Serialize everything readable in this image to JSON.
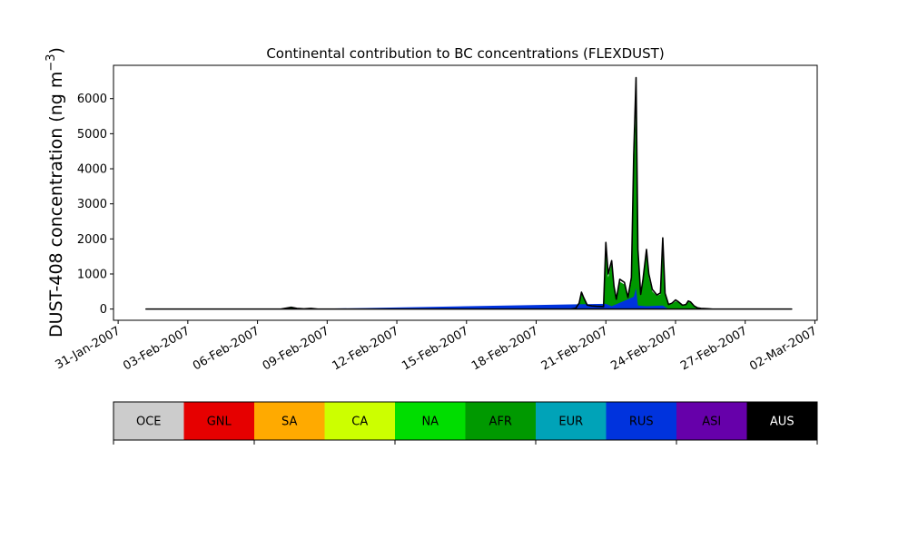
{
  "chart_data": {
    "type": "area",
    "title": "Continental contribution to BC concentrations (FLEXDUST)",
    "ylabel_main": "DUST-408 concentration (ng m",
    "ylabel_sup": "−3",
    "ylabel_close": ")",
    "xlabel": "",
    "ylim": [
      -320,
      6950
    ],
    "xlim_days": [
      -0.2,
      30.1
    ],
    "x_ticks": [
      {
        "label": "31-Jan-2007",
        "day": 0
      },
      {
        "label": "03-Feb-2007",
        "day": 3
      },
      {
        "label": "06-Feb-2007",
        "day": 6
      },
      {
        "label": "09-Feb-2007",
        "day": 9
      },
      {
        "label": "12-Feb-2007",
        "day": 12
      },
      {
        "label": "15-Feb-2007",
        "day": 15
      },
      {
        "label": "18-Feb-2007",
        "day": 18
      },
      {
        "label": "21-Feb-2007",
        "day": 21
      },
      {
        "label": "24-Feb-2007",
        "day": 24
      },
      {
        "label": "27-Feb-2007",
        "day": 27
      },
      {
        "label": "02-Mar-2007",
        "day": 30
      }
    ],
    "y_ticks": [
      0,
      1000,
      2000,
      3000,
      4000,
      5000,
      6000
    ],
    "series": [
      {
        "color": "#009900",
        "points": [
          [
            1.2,
            0
          ],
          [
            7.0,
            0
          ],
          [
            7.2,
            20
          ],
          [
            7.45,
            45
          ],
          [
            7.7,
            15
          ],
          [
            8.0,
            5
          ],
          [
            8.3,
            15
          ],
          [
            8.6,
            0
          ],
          [
            9.0,
            0
          ],
          [
            19.5,
            0
          ],
          [
            19.7,
            20
          ],
          [
            19.85,
            150
          ],
          [
            19.95,
            450
          ],
          [
            20.05,
            300
          ],
          [
            20.2,
            100
          ],
          [
            20.4,
            80
          ],
          [
            20.6,
            70
          ],
          [
            20.9,
            60
          ],
          [
            21.0,
            1700
          ],
          [
            21.1,
            900
          ],
          [
            21.25,
            1300
          ],
          [
            21.35,
            600
          ],
          [
            21.45,
            250
          ],
          [
            21.6,
            780
          ],
          [
            21.8,
            700
          ],
          [
            21.95,
            300
          ],
          [
            22.1,
            800
          ],
          [
            22.2,
            4000
          ],
          [
            22.3,
            5800
          ],
          [
            22.38,
            1500
          ],
          [
            22.5,
            400
          ],
          [
            22.6,
            800
          ],
          [
            22.75,
            1600
          ],
          [
            22.85,
            900
          ],
          [
            23.0,
            500
          ],
          [
            23.2,
            380
          ],
          [
            23.35,
            420
          ],
          [
            23.45,
            1700
          ],
          [
            23.55,
            400
          ],
          [
            23.7,
            120
          ],
          [
            23.85,
            150
          ],
          [
            24.0,
            220
          ],
          [
            24.1,
            200
          ],
          [
            24.3,
            100
          ],
          [
            24.45,
            120
          ],
          [
            24.55,
            200
          ],
          [
            24.65,
            180
          ],
          [
            24.8,
            80
          ],
          [
            24.95,
            30
          ],
          [
            25.1,
            15
          ],
          [
            25.4,
            10
          ],
          [
            25.6,
            0
          ],
          [
            29.0,
            0
          ]
        ]
      },
      {
        "color": "#0033dd",
        "points": [
          [
            1.2,
            0
          ],
          [
            7.0,
            0
          ],
          [
            7.45,
            10
          ],
          [
            8.0,
            0
          ],
          [
            21.0,
            150
          ],
          [
            21.25,
            80
          ],
          [
            22.2,
            350
          ],
          [
            22.3,
            600
          ],
          [
            22.38,
            100
          ],
          [
            22.75,
            80
          ],
          [
            23.45,
            100
          ],
          [
            23.7,
            0
          ],
          [
            29.0,
            0
          ]
        ]
      },
      {
        "color": "#000000",
        "points": [
          [
            1.2,
            0
          ],
          [
            7.0,
            0
          ],
          [
            7.2,
            22
          ],
          [
            7.45,
            50
          ],
          [
            7.7,
            18
          ],
          [
            8.0,
            5
          ],
          [
            8.3,
            18
          ],
          [
            8.6,
            0
          ],
          [
            9.0,
            0
          ],
          [
            19.5,
            0
          ],
          [
            19.7,
            22
          ],
          [
            19.85,
            170
          ],
          [
            19.95,
            480
          ],
          [
            20.05,
            320
          ],
          [
            20.2,
            110
          ],
          [
            20.4,
            90
          ],
          [
            20.6,
            80
          ],
          [
            20.9,
            70
          ],
          [
            21.0,
            1900
          ],
          [
            21.1,
            1000
          ],
          [
            21.25,
            1380
          ],
          [
            21.35,
            650
          ],
          [
            21.45,
            280
          ],
          [
            21.6,
            850
          ],
          [
            21.8,
            760
          ],
          [
            21.95,
            330
          ],
          [
            22.1,
            900
          ],
          [
            22.2,
            4400
          ],
          [
            22.3,
            6600
          ],
          [
            22.38,
            1700
          ],
          [
            22.5,
            420
          ],
          [
            22.6,
            850
          ],
          [
            22.75,
            1700
          ],
          [
            22.85,
            1000
          ],
          [
            23.0,
            560
          ],
          [
            23.2,
            400
          ],
          [
            23.35,
            460
          ],
          [
            23.45,
            2030
          ],
          [
            23.55,
            450
          ],
          [
            23.7,
            130
          ],
          [
            23.85,
            170
          ],
          [
            24.0,
            260
          ],
          [
            24.1,
            220
          ],
          [
            24.3,
            110
          ],
          [
            24.45,
            130
          ],
          [
            24.55,
            230
          ],
          [
            24.65,
            200
          ],
          [
            24.8,
            90
          ],
          [
            24.95,
            35
          ],
          [
            25.1,
            18
          ],
          [
            25.4,
            10
          ],
          [
            25.6,
            0
          ],
          [
            29.0,
            0
          ]
        ]
      }
    ],
    "legend": {
      "placement": "bottom",
      "entries": [
        {
          "label": "OCE",
          "color": "#cccccc",
          "text_color": "#000000"
        },
        {
          "label": "GNL",
          "color": "#e60000",
          "text_color": "#000000"
        },
        {
          "label": "SA",
          "color": "#ffaa00",
          "text_color": "#000000"
        },
        {
          "label": "CA",
          "color": "#ccff00",
          "text_color": "#000000"
        },
        {
          "label": "NA",
          "color": "#00dd00",
          "text_color": "#000000"
        },
        {
          "label": "AFR",
          "color": "#009900",
          "text_color": "#000000"
        },
        {
          "label": "EUR",
          "color": "#00a3b8",
          "text_color": "#000000"
        },
        {
          "label": "RUS",
          "color": "#0033dd",
          "text_color": "#000000"
        },
        {
          "label": "ASI",
          "color": "#6600aa",
          "text_color": "#000000"
        },
        {
          "label": "AUS",
          "color": "#000000",
          "text_color": "#ffffff"
        }
      ]
    }
  }
}
